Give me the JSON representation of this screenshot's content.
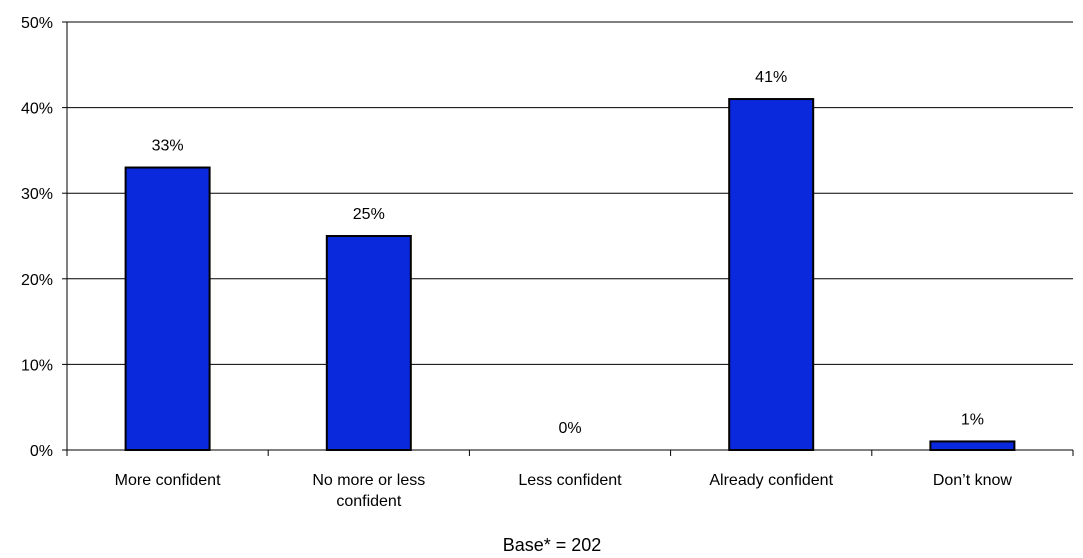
{
  "chart_data": {
    "type": "bar",
    "categories": [
      [
        "More confident"
      ],
      [
        "No more or less",
        "confident"
      ],
      [
        "Less confident"
      ],
      [
        "Already confident"
      ],
      [
        "Don’t know"
      ]
    ],
    "values": [
      33,
      25,
      0,
      41,
      1
    ],
    "data_labels": [
      "33%",
      "25%",
      "0%",
      "41%",
      "1%"
    ],
    "y_ticks": [
      {
        "value": 0,
        "label": "0%"
      },
      {
        "value": 10,
        "label": "10%"
      },
      {
        "value": 20,
        "label": "20%"
      },
      {
        "value": 30,
        "label": "30%"
      },
      {
        "value": 40,
        "label": "40%"
      },
      {
        "value": 50,
        "label": "50%"
      }
    ],
    "ylim": [
      0,
      50
    ],
    "grid": true,
    "legend": false,
    "title": "",
    "xlabel": "",
    "ylabel": "",
    "bar_color": "#0A28DC",
    "bar_edge_color": "#000000",
    "footnote": "Base* = 202"
  }
}
